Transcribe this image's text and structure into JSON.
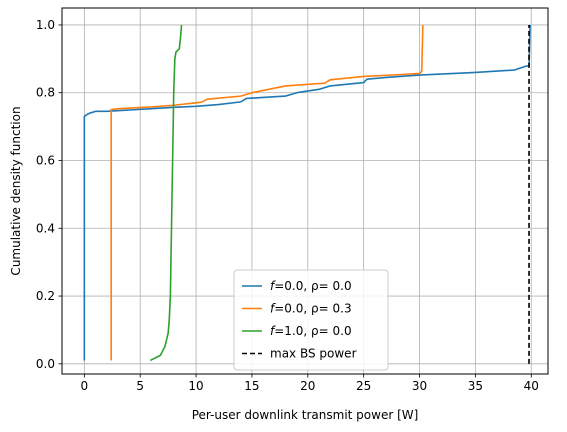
{
  "chart_data": {
    "type": "line",
    "title": "",
    "xlabel": "Per-user downlink transmit power [W]",
    "ylabel": "Cumulative density function",
    "xlim": [
      -2,
      41.5
    ],
    "ylim": [
      -0.03,
      1.05
    ],
    "xticks": [
      0,
      5,
      10,
      15,
      20,
      25,
      30,
      35,
      40
    ],
    "yticks": [
      0.0,
      0.2,
      0.4,
      0.6,
      0.8,
      1.0
    ],
    "xtick_labels": [
      "0",
      "5",
      "10",
      "15",
      "20",
      "25",
      "30",
      "35",
      "40"
    ],
    "ytick_labels": [
      "0.0",
      "0.2",
      "0.4",
      "0.6",
      "0.8",
      "1.0"
    ],
    "grid": true,
    "legend_position": "lower-center",
    "series": [
      {
        "name": "f=0.0, ρ= 0.0",
        "color": "#1f77b4",
        "style": "solid",
        "points": [
          [
            0.0,
            0.01
          ],
          [
            0.0,
            0.73
          ],
          [
            0.2,
            0.735
          ],
          [
            0.5,
            0.74
          ],
          [
            1.0,
            0.745
          ],
          [
            2.0,
            0.745
          ],
          [
            4.0,
            0.749
          ],
          [
            6.0,
            0.753
          ],
          [
            8.0,
            0.757
          ],
          [
            10.0,
            0.76
          ],
          [
            12.0,
            0.765
          ],
          [
            14.0,
            0.773
          ],
          [
            14.5,
            0.783
          ],
          [
            16.0,
            0.786
          ],
          [
            18.0,
            0.79
          ],
          [
            19.0,
            0.8
          ],
          [
            21.0,
            0.81
          ],
          [
            22.0,
            0.82
          ],
          [
            25.0,
            0.83
          ],
          [
            25.3,
            0.84
          ],
          [
            27.0,
            0.845
          ],
          [
            30.0,
            0.852
          ],
          [
            35.0,
            0.86
          ],
          [
            38.5,
            0.867
          ],
          [
            39.5,
            0.878
          ],
          [
            39.8,
            0.88
          ],
          [
            39.9,
            1.0
          ]
        ]
      },
      {
        "name": "f=0.0, ρ= 0.3",
        "color": "#ff7f0e",
        "style": "solid",
        "points": [
          [
            2.4,
            0.01
          ],
          [
            2.4,
            0.75
          ],
          [
            3.0,
            0.753
          ],
          [
            6.0,
            0.758
          ],
          [
            8.0,
            0.763
          ],
          [
            10.5,
            0.772
          ],
          [
            11.0,
            0.781
          ],
          [
            14.0,
            0.79
          ],
          [
            15.0,
            0.8
          ],
          [
            18.0,
            0.82
          ],
          [
            21.5,
            0.828
          ],
          [
            22.0,
            0.838
          ],
          [
            25.0,
            0.848
          ],
          [
            28.0,
            0.853
          ],
          [
            30.0,
            0.857
          ],
          [
            30.2,
            0.863
          ],
          [
            30.3,
            1.0
          ]
        ]
      },
      {
        "name": "f=1.0, ρ= 0.0",
        "color": "#2ca02c",
        "style": "solid",
        "points": [
          [
            5.9,
            0.01
          ],
          [
            6.8,
            0.025
          ],
          [
            7.2,
            0.05
          ],
          [
            7.5,
            0.09
          ],
          [
            7.6,
            0.13
          ],
          [
            7.7,
            0.2
          ],
          [
            7.75,
            0.3
          ],
          [
            7.8,
            0.4
          ],
          [
            7.85,
            0.5
          ],
          [
            7.9,
            0.6
          ],
          [
            7.95,
            0.7
          ],
          [
            8.0,
            0.8
          ],
          [
            8.05,
            0.85
          ],
          [
            8.1,
            0.9
          ],
          [
            8.2,
            0.92
          ],
          [
            8.5,
            0.93
          ],
          [
            8.6,
            0.96
          ],
          [
            8.7,
            1.0
          ]
        ]
      },
      {
        "name": "max BS power",
        "color": "#000000",
        "style": "dashed",
        "points": [
          [
            39.8,
            0.0
          ],
          [
            39.8,
            1.0
          ]
        ]
      }
    ]
  }
}
